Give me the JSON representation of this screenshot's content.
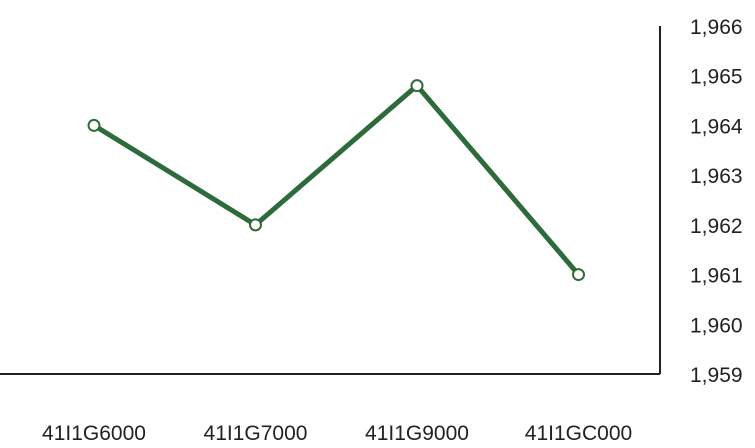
{
  "chart_data": {
    "type": "line",
    "categories": [
      "41I1G6000",
      "41I1G7000",
      "41I1G9000",
      "41I1GC000"
    ],
    "series": [
      {
        "values": [
          1964.0,
          1962.0,
          1964.8,
          1961.0
        ],
        "color": "#2d6b3a"
      }
    ],
    "y_ticks": [
      "1,959",
      "1,960",
      "1,961",
      "1,962",
      "1,963",
      "1,964",
      "1,965",
      "1,966"
    ],
    "ylim": [
      1959,
      1966
    ],
    "y_axis_side": "right",
    "grid": false,
    "legend": "none",
    "marker": "open-circle",
    "title": "",
    "xlabel": "",
    "ylabel": ""
  }
}
